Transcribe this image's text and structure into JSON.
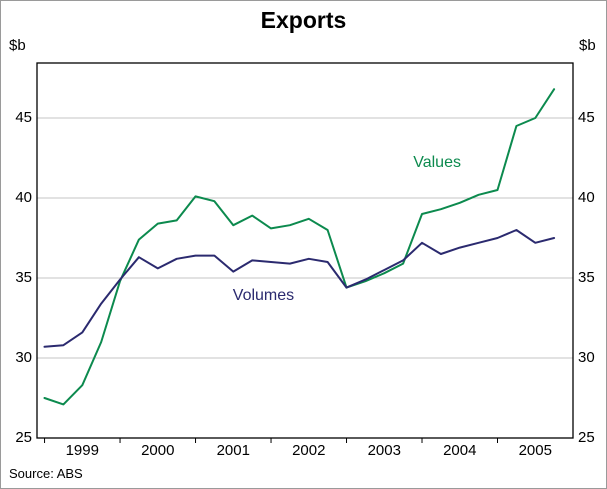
{
  "title": "Exports",
  "axis_units": {
    "left": "$b",
    "right": "$b"
  },
  "source": "Source: ABS",
  "colors": {
    "values_line": "#0c8a4e",
    "volumes_line": "#2b2a6f",
    "grid": "#c4c4c4",
    "axis": "#000000"
  },
  "chart_data": {
    "type": "line",
    "title": "Exports",
    "ylabel": "$b",
    "xlim": [
      1998.9,
      2006.0
    ],
    "ylim": [
      25,
      48.44
    ],
    "yticks": [
      25,
      30,
      35,
      40,
      45
    ],
    "xticks": [
      1999,
      2000,
      2001,
      2002,
      2003,
      2004,
      2005
    ],
    "xtick_labels": [
      "1999",
      "2000",
      "2001",
      "2002",
      "2003",
      "2004",
      "2005"
    ],
    "grid": "horizontal",
    "legend_position": "inline-annotations",
    "x": [
      1999.0,
      1999.25,
      1999.5,
      1999.75,
      2000.0,
      2000.25,
      2000.5,
      2000.75,
      2001.0,
      2001.25,
      2001.5,
      2001.75,
      2002.0,
      2002.25,
      2002.5,
      2002.75,
      2003.0,
      2003.25,
      2003.5,
      2003.75,
      2004.0,
      2004.25,
      2004.5,
      2004.75,
      2005.0,
      2005.25,
      2005.5,
      2005.75
    ],
    "series": [
      {
        "name": "Values",
        "color": "#0c8a4e",
        "values": [
          27.5,
          27.1,
          28.3,
          31.0,
          34.8,
          37.4,
          38.4,
          38.6,
          40.1,
          39.8,
          38.3,
          38.9,
          38.1,
          38.3,
          38.7,
          38.0,
          34.4,
          34.8,
          35.3,
          35.9,
          39.0,
          39.3,
          39.7,
          40.2,
          40.5,
          44.5,
          45.0,
          46.8
        ]
      },
      {
        "name": "Volumes",
        "color": "#2b2a6f",
        "values": [
          30.7,
          30.8,
          31.6,
          33.4,
          34.9,
          36.3,
          35.6,
          36.2,
          36.4,
          36.4,
          35.4,
          36.1,
          36.0,
          35.9,
          36.2,
          36.0,
          34.4,
          34.9,
          35.5,
          36.1,
          37.2,
          36.5,
          36.9,
          37.2,
          37.5,
          38.0,
          37.2,
          37.5
        ]
      }
    ],
    "annotations": [
      {
        "text": "Values",
        "x": 2004.2,
        "y": 42.2,
        "color": "#0c8a4e"
      },
      {
        "text": "Volumes",
        "x": 2001.9,
        "y": 33.9,
        "color": "#2b2a6f"
      }
    ]
  }
}
